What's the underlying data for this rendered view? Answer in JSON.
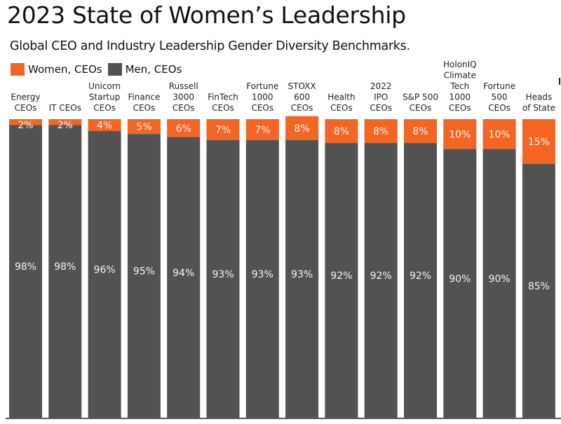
{
  "chart_data": {
    "type": "bar",
    "stacked": true,
    "title": "2023 State of Women’s Leadership",
    "subtitle": "Global CEO and Industry Leadership Gender Diversity Benchmarks.",
    "xlabel": "",
    "ylabel": "",
    "ylim": [
      0,
      100
    ],
    "grid": false,
    "legend_position": "top-left",
    "categories": [
      [
        "Energy",
        "CEOs"
      ],
      [
        "IT CEOs"
      ],
      [
        "Unicorn",
        "Startup",
        "CEOs"
      ],
      [
        "Finance",
        "CEOs"
      ],
      [
        "Russell",
        "3000",
        "CEOs"
      ],
      [
        "FinTech",
        "CEOs"
      ],
      [
        "Fortune",
        "1000",
        "CEOs"
      ],
      [
        "STOXX",
        "600",
        "CEOs"
      ],
      [
        "Health",
        "CEOs"
      ],
      [
        "2022",
        "IPO",
        "CEOs"
      ],
      [
        "S&P 500",
        "CEOs"
      ],
      [
        "HolonIQ",
        "Climate",
        "Tech",
        "1000",
        "CEOs"
      ],
      [
        "Fortune",
        "500",
        "CEOs"
      ],
      [
        "Heads",
        "of State"
      ]
    ],
    "series": [
      {
        "name": "Women, CEOs",
        "color": "#F26522",
        "values": [
          2,
          2,
          4,
          5,
          6,
          7,
          7,
          8,
          8,
          8,
          8,
          10,
          10,
          15
        ],
        "labels": [
          "2%",
          "2%",
          "4%",
          "5%",
          "6%",
          "7%",
          "7%",
          "8%",
          "8%",
          "8%",
          "8%",
          "10%",
          "10%",
          "15%"
        ]
      },
      {
        "name": "Men, CEOs",
        "color": "#525252",
        "values": [
          98,
          98,
          96,
          95,
          94,
          93,
          93,
          93,
          92,
          92,
          92,
          90,
          90,
          85
        ],
        "labels": [
          "98%",
          "98%",
          "96%",
          "95%",
          "94%",
          "93%",
          "93%",
          "93%",
          "92%",
          "92%",
          "92%",
          "90%",
          "90%",
          "85%"
        ]
      }
    ]
  }
}
